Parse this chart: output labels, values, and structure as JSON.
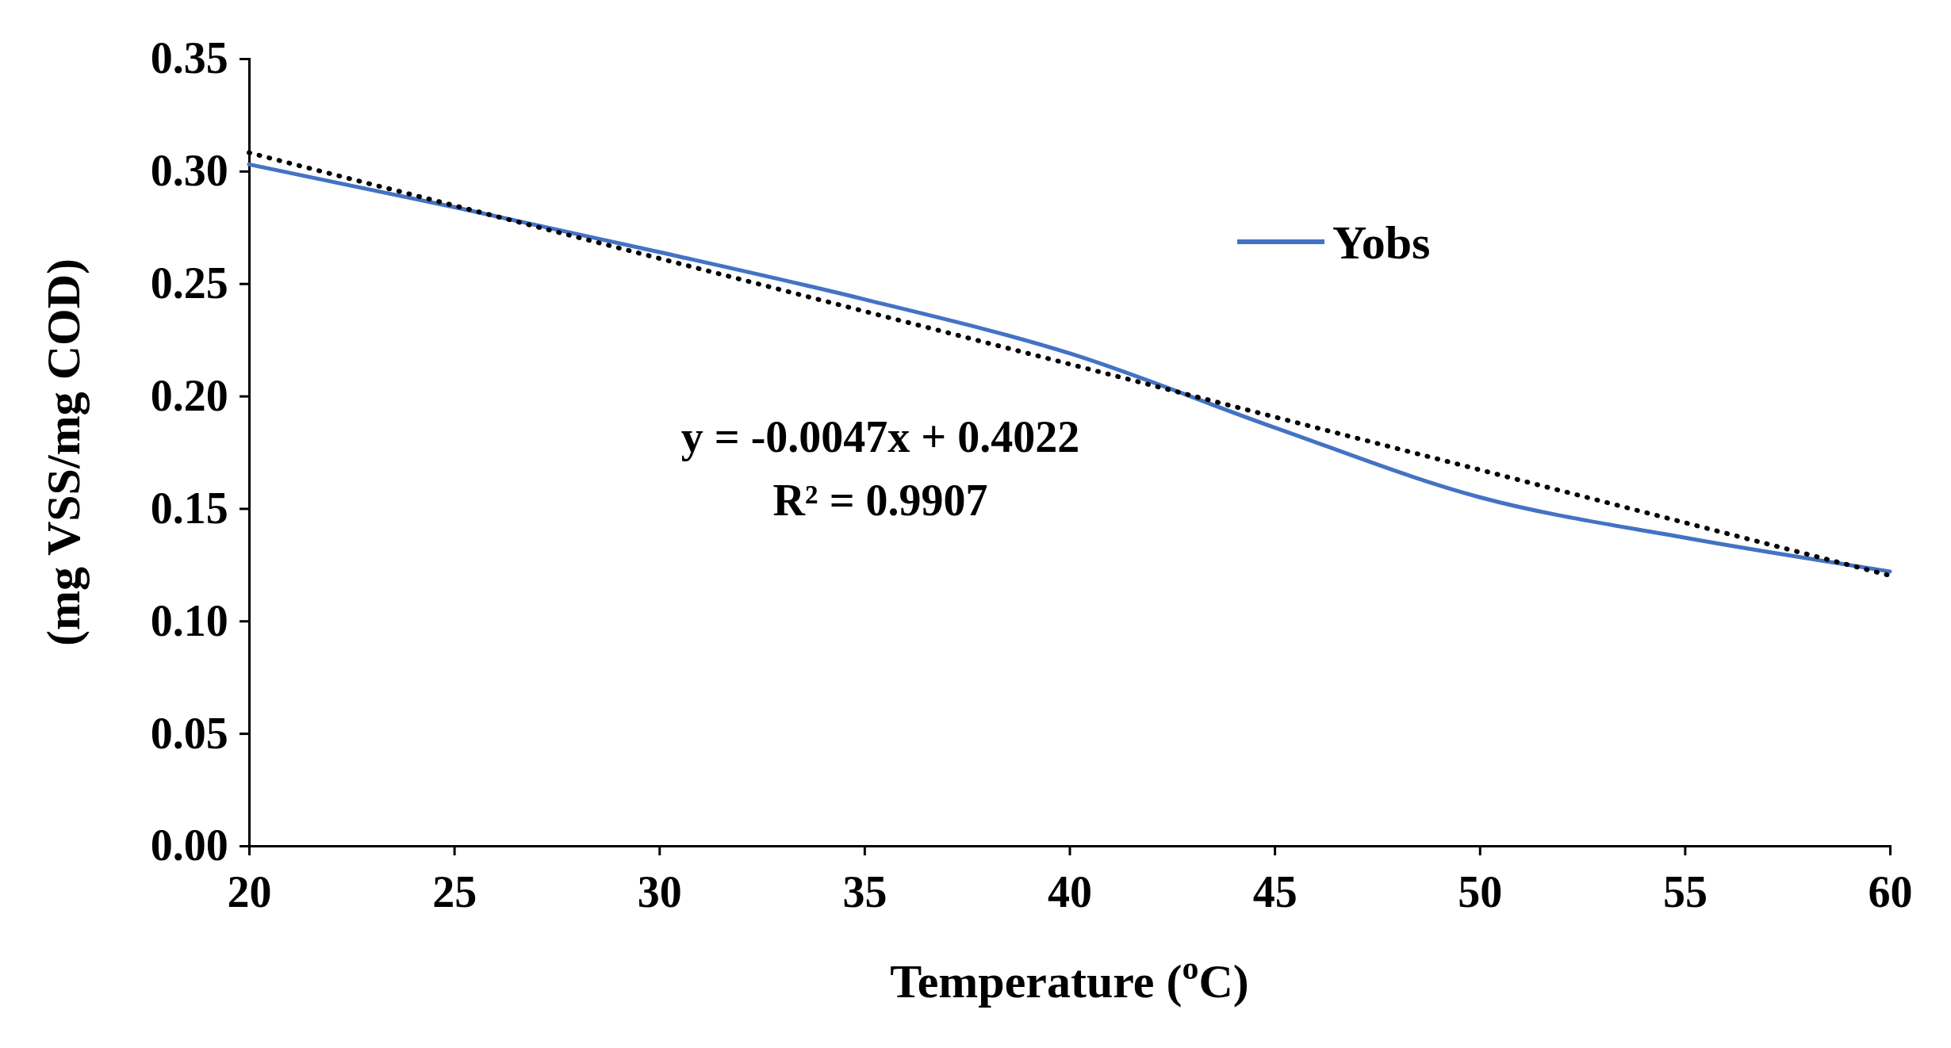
{
  "chart_data": {
    "type": "line",
    "xlabel": "Temperature ($^{o}$C)",
    "ylabel": "(mg VSS/mg COD)",
    "x": [
      20,
      25,
      30,
      35,
      40,
      45,
      50,
      55,
      60
    ],
    "series": [
      {
        "name": "Yobs",
        "color": "#4472c4",
        "line_style": "solid",
        "values": [
          0.303,
          0.284,
          0.264,
          0.243,
          0.219,
          0.186,
          0.155,
          0.137,
          0.122
        ]
      },
      {
        "type": "line",
        "color": "#000000",
        "line_style": "dotted",
        "x": [
          20,
          60
        ],
        "values": [
          0.3082,
          0.1202
        ]
      }
    ],
    "annotations": [
      "y = -0.0047x + 0.4022",
      "R² = 0.9907"
    ],
    "xlim": [
      20,
      60
    ],
    "xticks": [
      20,
      25,
      30,
      35,
      40,
      45,
      50,
      55,
      60
    ],
    "ylim": [
      0,
      0.35
    ],
    "yticks": [
      {
        "value": 0,
        "label": "0.00"
      },
      {
        "value": 0.05,
        "label": "0.05"
      },
      {
        "value": 0.1,
        "label": "0.10"
      },
      {
        "value": 0.15,
        "label": "0.15"
      },
      {
        "value": 0.2,
        "label": "0.20"
      },
      {
        "value": 0.25,
        "label": "0.25"
      },
      {
        "value": 0.3,
        "label": "0.30"
      },
      {
        "value": 0.35,
        "label": "0.35"
      }
    ],
    "grid": false,
    "legend": "top right",
    "marker": "none"
  }
}
